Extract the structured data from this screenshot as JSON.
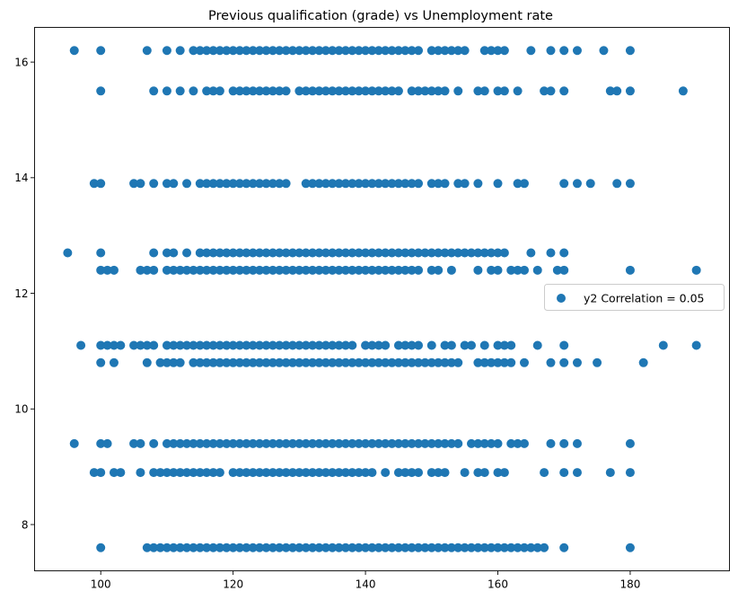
{
  "chart_data": {
    "type": "scatter",
    "title": "Previous qualification (grade) vs Unemployment rate",
    "xlabel": "",
    "ylabel": "",
    "xlim": [
      90,
      195
    ],
    "ylim": [
      7.2,
      16.6
    ],
    "xticks": [
      100,
      120,
      140,
      160,
      180
    ],
    "yticks": [
      8,
      10,
      12,
      14,
      16
    ],
    "grid": false,
    "legend": {
      "position": "right",
      "entries": [
        "y2 Correlation = 0.05"
      ]
    },
    "colors": {
      "marker": "#1f77b4",
      "axis": "#000000",
      "legend_border": "#cccccc"
    },
    "series": [
      {
        "name": "y2 Correlation = 0.05",
        "groups": [
          {
            "y": 16.2,
            "x": [
              96,
              100,
              107,
              110,
              112,
              114,
              115,
              116,
              117,
              118,
              119,
              120,
              121,
              122,
              123,
              124,
              125,
              126,
              127,
              128,
              129,
              130,
              131,
              132,
              133,
              134,
              135,
              136,
              137,
              138,
              139,
              140,
              141,
              142,
              143,
              144,
              145,
              146,
              147,
              148,
              150,
              151,
              152,
              153,
              154,
              155,
              158,
              159,
              160,
              161,
              165,
              168,
              170,
              172,
              176,
              180
            ]
          },
          {
            "y": 15.5,
            "x": [
              100,
              108,
              110,
              112,
              114,
              116,
              117,
              118,
              120,
              121,
              122,
              123,
              124,
              125,
              126,
              127,
              128,
              130,
              131,
              132,
              133,
              134,
              135,
              136,
              137,
              138,
              139,
              140,
              141,
              142,
              143,
              144,
              145,
              147,
              148,
              149,
              150,
              151,
              152,
              154,
              157,
              158,
              160,
              161,
              163,
              167,
              168,
              170,
              177,
              178,
              180,
              188
            ]
          },
          {
            "y": 13.9,
            "x": [
              99,
              100,
              105,
              106,
              108,
              110,
              111,
              113,
              115,
              116,
              117,
              118,
              119,
              120,
              121,
              122,
              123,
              124,
              125,
              126,
              127,
              128,
              131,
              132,
              133,
              134,
              135,
              136,
              137,
              138,
              139,
              140,
              141,
              142,
              143,
              144,
              145,
              146,
              147,
              148,
              150,
              151,
              152,
              154,
              155,
              157,
              160,
              163,
              164,
              170,
              172,
              174,
              178,
              180
            ]
          },
          {
            "y": 12.7,
            "x": [
              95,
              100,
              108,
              110,
              111,
              113,
              115,
              116,
              117,
              118,
              119,
              120,
              121,
              122,
              123,
              124,
              125,
              126,
              127,
              128,
              129,
              130,
              131,
              132,
              133,
              134,
              135,
              136,
              137,
              138,
              139,
              140,
              141,
              142,
              143,
              144,
              145,
              146,
              147,
              148,
              149,
              150,
              151,
              152,
              153,
              154,
              155,
              156,
              157,
              158,
              159,
              160,
              161,
              165,
              168,
              170
            ]
          },
          {
            "y": 12.4,
            "x": [
              100,
              101,
              102,
              106,
              107,
              108,
              110,
              111,
              112,
              113,
              114,
              115,
              116,
              117,
              118,
              119,
              120,
              121,
              122,
              123,
              124,
              125,
              126,
              127,
              128,
              129,
              130,
              131,
              132,
              133,
              134,
              135,
              136,
              137,
              138,
              139,
              140,
              141,
              142,
              143,
              144,
              145,
              146,
              147,
              148,
              150,
              151,
              153,
              157,
              159,
              160,
              162,
              163,
              164,
              166,
              169,
              170,
              180,
              190
            ]
          },
          {
            "y": 11.1,
            "x": [
              97,
              100,
              101,
              102,
              103,
              105,
              106,
              107,
              108,
              110,
              111,
              112,
              113,
              114,
              115,
              116,
              117,
              118,
              119,
              120,
              121,
              122,
              123,
              124,
              125,
              126,
              127,
              128,
              129,
              130,
              131,
              132,
              133,
              134,
              135,
              136,
              137,
              138,
              140,
              141,
              142,
              143,
              145,
              146,
              147,
              148,
              150,
              152,
              153,
              155,
              156,
              158,
              160,
              161,
              162,
              166,
              170,
              185,
              190
            ]
          },
          {
            "y": 10.8,
            "x": [
              100,
              102,
              107,
              109,
              110,
              111,
              112,
              114,
              115,
              116,
              117,
              118,
              119,
              120,
              121,
              122,
              123,
              124,
              125,
              126,
              127,
              128,
              129,
              130,
              131,
              132,
              133,
              134,
              135,
              136,
              137,
              138,
              139,
              140,
              141,
              142,
              143,
              144,
              145,
              146,
              147,
              148,
              149,
              150,
              151,
              152,
              153,
              154,
              157,
              158,
              159,
              160,
              161,
              162,
              164,
              168,
              170,
              172,
              175,
              182
            ]
          },
          {
            "y": 9.4,
            "x": [
              96,
              100,
              101,
              105,
              106,
              108,
              110,
              111,
              112,
              113,
              114,
              115,
              116,
              117,
              118,
              119,
              120,
              121,
              122,
              123,
              124,
              125,
              126,
              127,
              128,
              129,
              130,
              131,
              132,
              133,
              134,
              135,
              136,
              137,
              138,
              139,
              140,
              141,
              142,
              143,
              144,
              145,
              146,
              147,
              148,
              149,
              150,
              151,
              152,
              153,
              154,
              156,
              157,
              158,
              159,
              160,
              162,
              163,
              164,
              168,
              170,
              172,
              180
            ]
          },
          {
            "y": 8.9,
            "x": [
              99,
              100,
              102,
              103,
              106,
              108,
              109,
              110,
              111,
              112,
              113,
              114,
              115,
              116,
              117,
              118,
              120,
              121,
              122,
              123,
              124,
              125,
              126,
              127,
              128,
              129,
              130,
              131,
              132,
              133,
              134,
              135,
              136,
              137,
              138,
              139,
              140,
              141,
              143,
              145,
              146,
              147,
              148,
              150,
              151,
              152,
              155,
              157,
              158,
              160,
              161,
              167,
              170,
              172,
              177,
              180
            ]
          },
          {
            "y": 7.6,
            "x": [
              100,
              107,
              108,
              109,
              110,
              111,
              112,
              113,
              114,
              115,
              116,
              117,
              118,
              119,
              120,
              121,
              122,
              123,
              124,
              125,
              126,
              127,
              128,
              129,
              130,
              131,
              132,
              133,
              134,
              135,
              136,
              137,
              138,
              139,
              140,
              141,
              142,
              143,
              144,
              145,
              146,
              147,
              148,
              149,
              150,
              151,
              152,
              153,
              154,
              155,
              156,
              157,
              158,
              159,
              160,
              161,
              162,
              163,
              164,
              165,
              166,
              167,
              170,
              180
            ]
          }
        ]
      }
    ]
  }
}
